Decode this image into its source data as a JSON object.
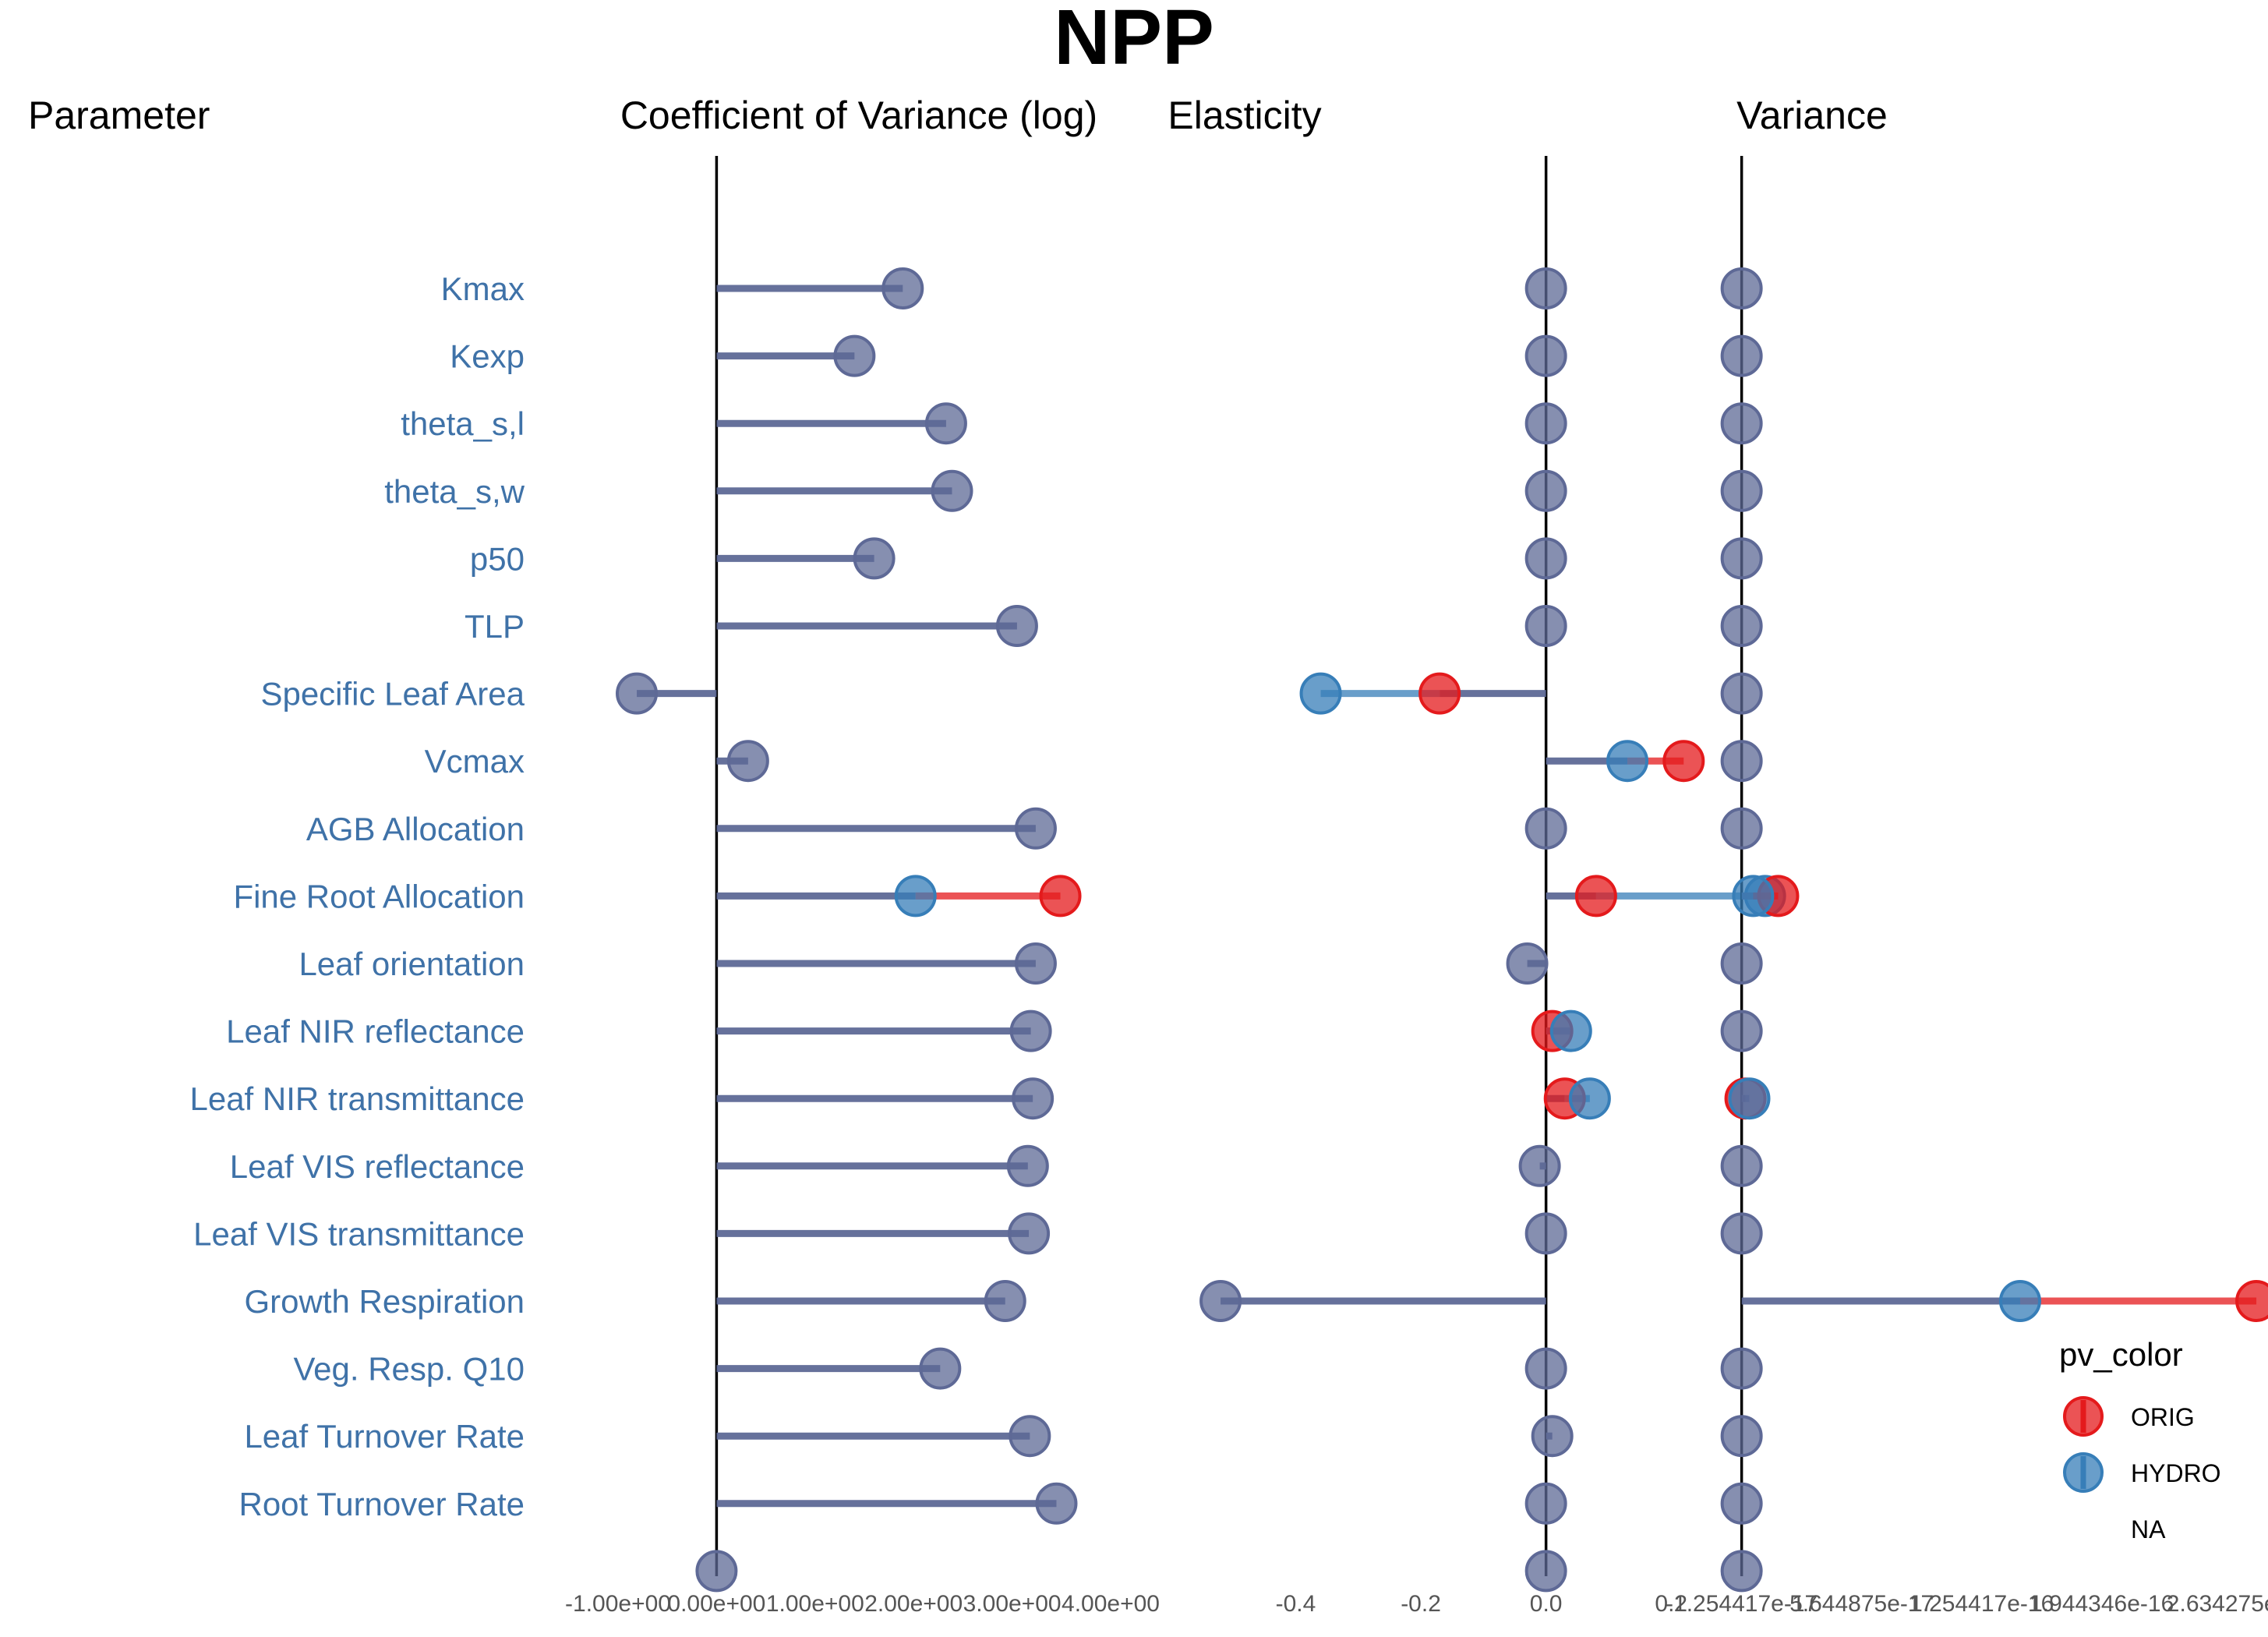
{
  "colors": {
    "orig": "#e41a1c",
    "hydro": "#377eb8",
    "both": "#5e6996",
    "axis": "#000000",
    "label": "#3f72a8"
  },
  "chart_data": {
    "type": "lollipop",
    "title": "NPP",
    "header": {
      "parameter": "Parameter",
      "cv": "Coefficient of Variance (log)",
      "elasticity": "Elasticity",
      "variance": "Variance"
    },
    "parameters": [
      "Kmax",
      "Kexp",
      "theta_s,l",
      "theta_s,w",
      "p50",
      "TLP",
      "Specific Leaf Area",
      "Vcmax",
      "AGB Allocation",
      "Fine Root Allocation",
      "Leaf orientation",
      "Leaf NIR reflectance",
      "Leaf NIR transmittance",
      "Leaf VIS reflectance",
      "Leaf VIS transmittance",
      "Growth Respiration",
      "Veg. Resp. Q10",
      "Leaf Turnover Rate",
      "Root Turnover Rate",
      ""
    ],
    "panels": [
      {
        "id": "cv",
        "xlim": [
          -1.0,
          4.0
        ],
        "ticks": [
          -1,
          0,
          1,
          2,
          3,
          4
        ],
        "tick_labels": [
          "-1.00e+00",
          "0.00e+00",
          "1.00e+00",
          "2.00e+00",
          "3.00e+00",
          "4.00e+00"
        ],
        "orig": [
          1.89,
          1.4,
          2.33,
          2.39,
          1.6,
          3.05,
          -0.81,
          0.32,
          3.24,
          3.49,
          3.24,
          3.19,
          3.21,
          3.16,
          3.17,
          2.93,
          2.27,
          3.18,
          3.45,
          0
        ],
        "hydro": [
          1.89,
          1.4,
          2.33,
          2.39,
          1.6,
          3.05,
          -0.81,
          0.32,
          3.24,
          2.02,
          3.24,
          3.19,
          3.21,
          3.16,
          3.17,
          2.93,
          2.27,
          3.18,
          3.45,
          0
        ]
      },
      {
        "id": "elasticity",
        "xlim": [
          -0.55,
          0.45
        ],
        "ticks": [
          -0.4,
          -0.2,
          0.0,
          0.2
        ],
        "tick_labels": [
          "-0.4",
          "-0.2",
          "0.0",
          "0.2"
        ],
        "orig": [
          0.0,
          0.0,
          0.0,
          0.0,
          0.0,
          0.0,
          -0.17,
          0.22,
          0.0,
          0.08,
          -0.03,
          0.01,
          0.03,
          -0.01,
          0.0,
          -0.52,
          0.0,
          0.01,
          0.0,
          0
        ],
        "hydro": [
          0.0,
          0.0,
          0.0,
          0.0,
          0.0,
          0.0,
          -0.36,
          0.13,
          0.0,
          0.35,
          -0.03,
          0.04,
          0.07,
          -0.01,
          0.0,
          -0.52,
          0.0,
          0.01,
          0.0,
          0
        ]
      },
      {
        "id": "variance",
        "xlim": [
          -1.0,
          27.0
        ],
        "ticks": [
          0,
          6.25,
          12.5,
          18.75,
          25
        ],
        "tick_labels": [
          "-1.254417e-17",
          "5.644875e-17",
          "1.254417e-16",
          "1.944346e-16",
          "2.634275e"
        ],
        "orig": [
          0,
          0,
          0,
          0,
          0,
          0,
          0,
          0,
          0,
          1.9,
          0,
          0,
          0.2,
          0,
          0,
          26.8,
          0,
          0,
          0,
          0
        ],
        "hydro": [
          0,
          0,
          0,
          0,
          0,
          0,
          0,
          0,
          0,
          0.6,
          0,
          0,
          0.4,
          0,
          0,
          14.5,
          0,
          0,
          0,
          0
        ]
      }
    ],
    "legend": {
      "title": "pv_color",
      "placement": "right",
      "items": [
        "ORIG",
        "HYDRO",
        "NA"
      ]
    }
  }
}
